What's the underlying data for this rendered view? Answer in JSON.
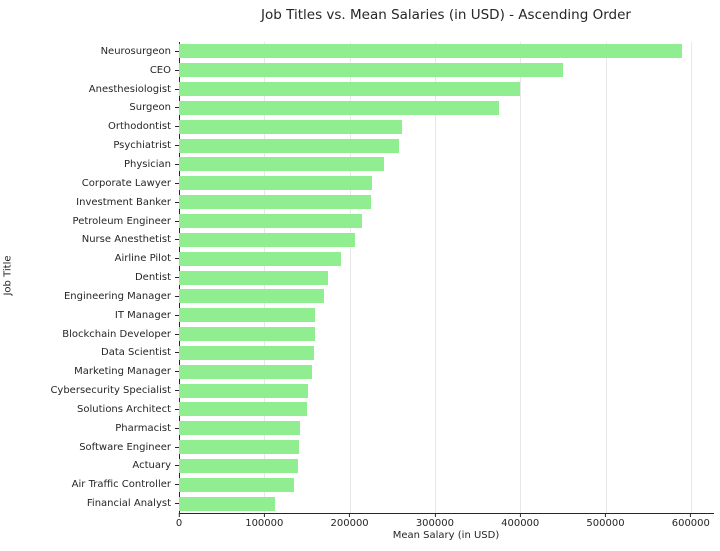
{
  "chart": {
    "title": "Job Titles vs. Mean Salaries (in USD) - Ascending Order",
    "xlabel": "Mean Salary (in USD)",
    "ylabel": "Job Title"
  },
  "chart_data": {
    "type": "bar",
    "orientation": "horizontal",
    "title": "Job Titles vs. Mean Salaries (in USD) - Ascending Order",
    "xlabel": "Mean Salary (in USD)",
    "ylabel": "Job Title",
    "categories": [
      "Neurosurgeon",
      "CEO",
      "Anesthesiologist",
      "Surgeon",
      "Orthodontist",
      "Psychiatrist",
      "Physician",
      "Corporate Lawyer",
      "Investment Banker",
      "Petroleum Engineer",
      "Nurse Anesthetist",
      "Airline Pilot",
      "Dentist",
      "Engineering Manager",
      "IT Manager",
      "Blockchain Developer",
      "Data Scientist",
      "Marketing Manager",
      "Cybersecurity Specialist",
      "Solutions Architect",
      "Pharmacist",
      "Software Engineer",
      "Actuary",
      "Air Traffic Controller",
      "Financial Analyst"
    ],
    "values": [
      590000,
      450000,
      400000,
      375000,
      262000,
      258000,
      240000,
      226000,
      225000,
      214000,
      206000,
      190000,
      175000,
      170000,
      160000,
      159000,
      158000,
      156000,
      151000,
      150000,
      142000,
      141000,
      140000,
      135000,
      112000
    ],
    "xlim": [
      0,
      626000
    ],
    "xticks": [
      0,
      100000,
      200000,
      300000,
      400000,
      500000,
      600000
    ],
    "xtick_labels": [
      "0",
      "100000",
      "200000",
      "300000",
      "400000",
      "500000",
      "600000"
    ],
    "grid": true,
    "legend": "none",
    "bar_color": "#90ee90",
    "grid_color": "#e8e8e8",
    "axis_color": "#262626",
    "background": "#ffffff"
  }
}
